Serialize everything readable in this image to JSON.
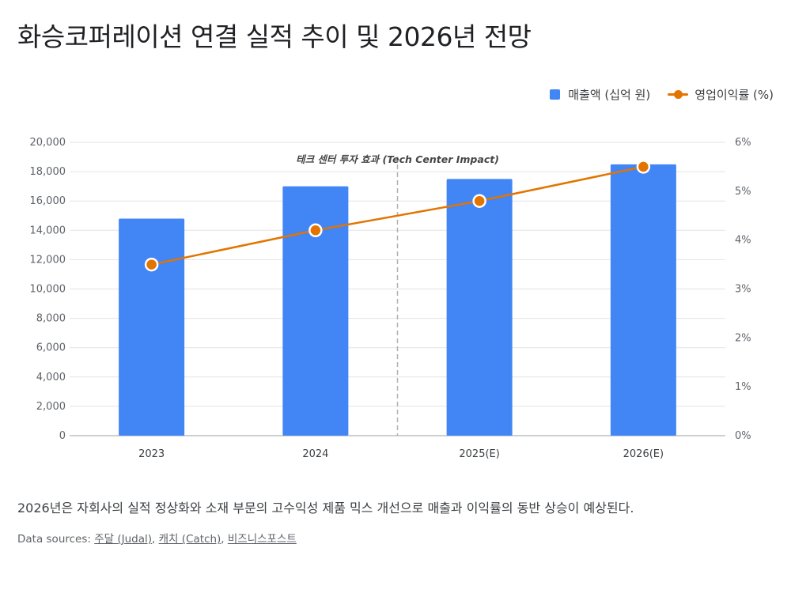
{
  "title": "화승코퍼레이션 연결 실적 추이 및 2026년 전망",
  "legend": {
    "bar_label": "매출액 (십억 원)",
    "line_label": "영업이익률 (%)"
  },
  "colors": {
    "bar": "#4285f4",
    "line": "#e37400",
    "grid": "#e3e3e3",
    "divider": "#b0b0b0"
  },
  "chart_data": {
    "type": "bar",
    "categories": [
      "2023",
      "2024",
      "2025(E)",
      "2026(E)"
    ],
    "series": [
      {
        "name": "매출액 (십억 원)",
        "type": "bar",
        "axis": "left",
        "values": [
          14800,
          17000,
          17500,
          18500
        ]
      },
      {
        "name": "영업이익률 (%)",
        "type": "line",
        "axis": "right",
        "values": [
          3.5,
          4.2,
          4.8,
          5.5
        ]
      }
    ],
    "ylim": [
      0,
      20000
    ],
    "y_ticks": [
      "0",
      "2,000",
      "4,000",
      "6,000",
      "8,000",
      "10,000",
      "12,000",
      "14,000",
      "16,000",
      "18,000",
      "20,000"
    ],
    "y2lim": [
      0,
      6
    ],
    "y2_ticks": [
      "0%",
      "1%",
      "2%",
      "3%",
      "4%",
      "5%",
      "6%"
    ],
    "grid": true,
    "legend_position": "top-right",
    "annotation": {
      "text": "테크 센터 투자 효과 (Tech Center Impact)",
      "between": [
        "2024",
        "2025(E)"
      ]
    }
  },
  "summary": "2026년은 자회사의 실적 정상화와 소재 부문의 고수익성 제품 믹스 개선으로 매출과 이익률의 동반 상승이 예상된다.",
  "sources": {
    "label": "Data sources:",
    "links": [
      "주달 (Judal)",
      "캐치 (Catch)",
      "비즈니스포스트"
    ]
  }
}
